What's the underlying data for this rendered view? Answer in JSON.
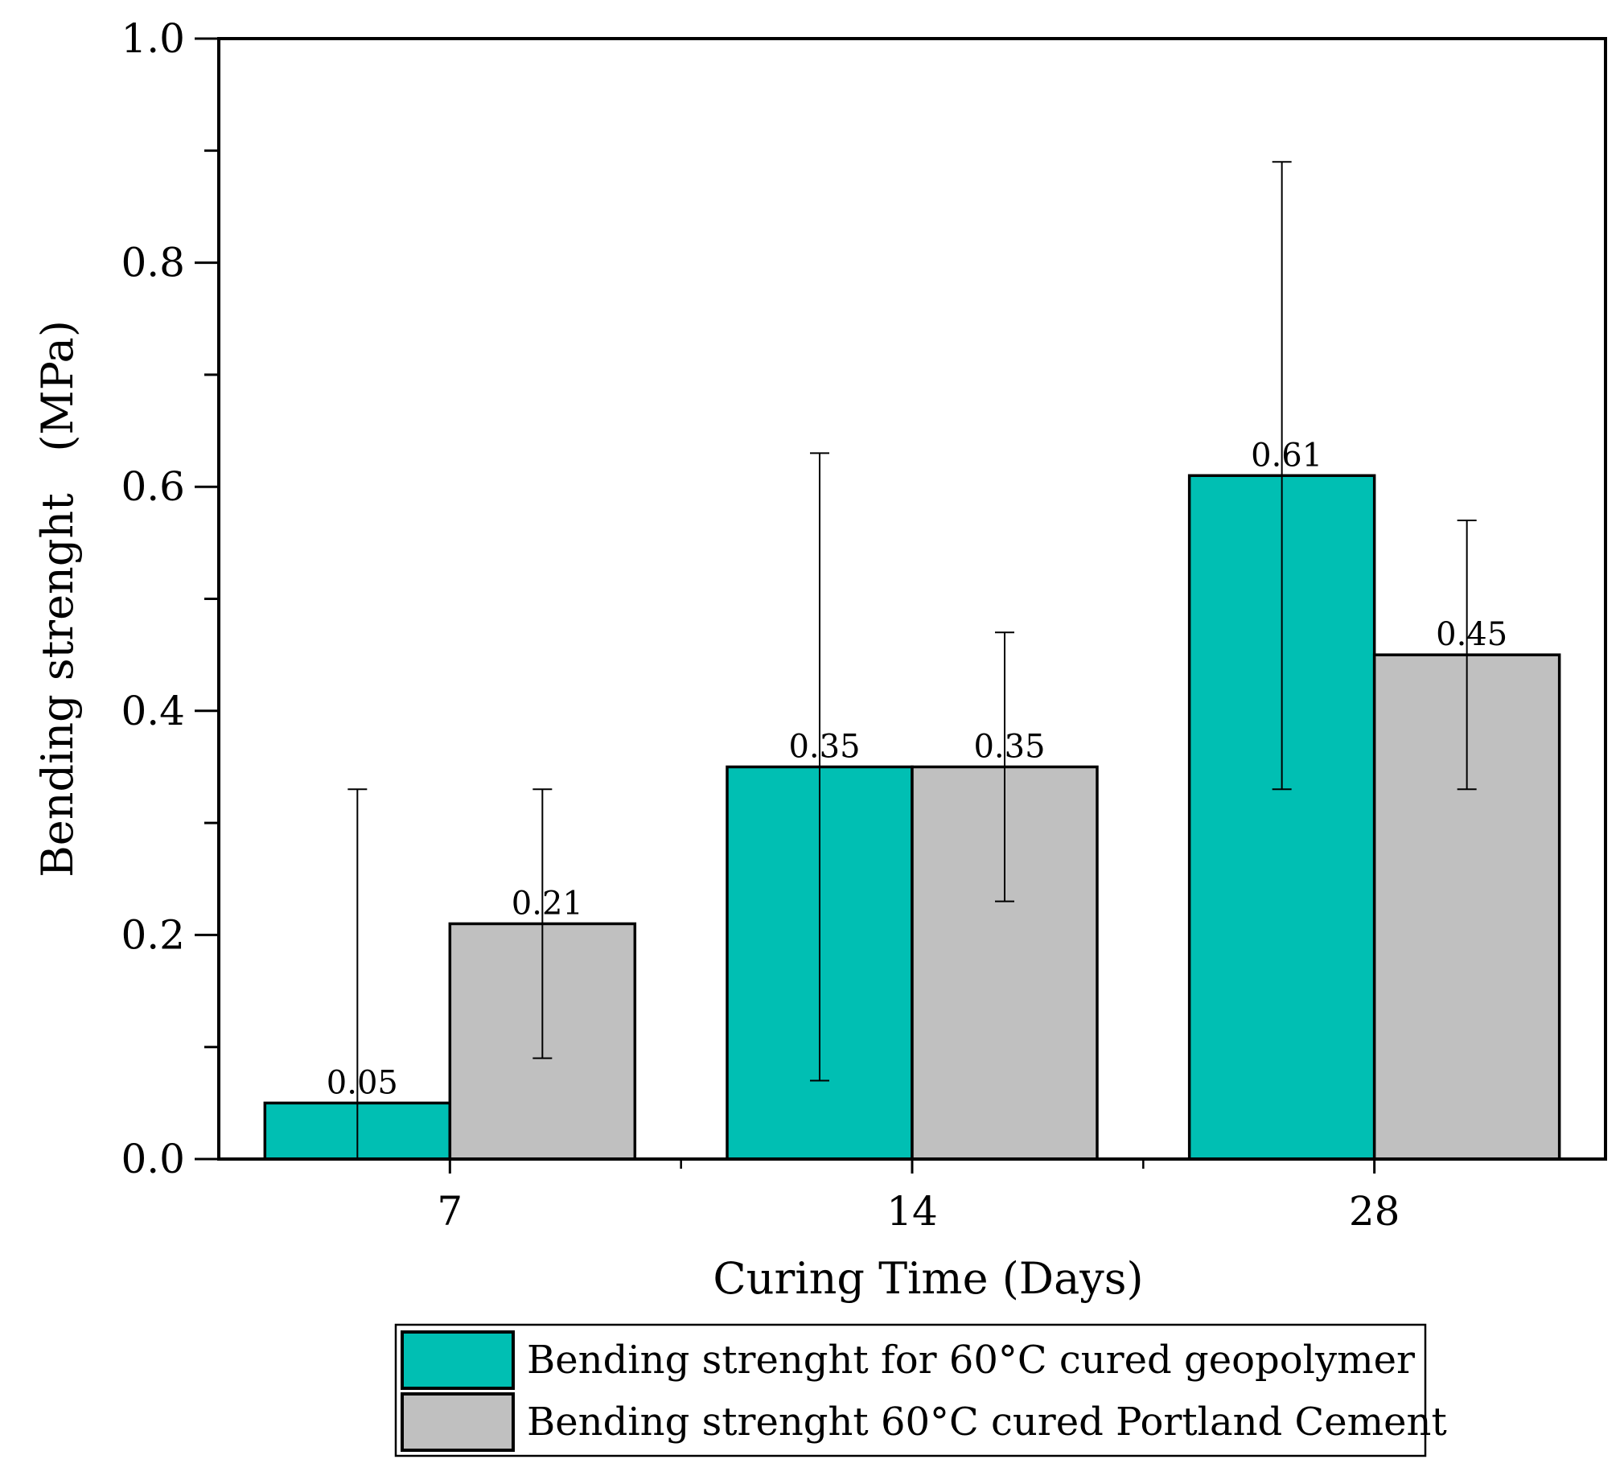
{
  "chart_data": {
    "type": "bar",
    "title": "",
    "xlabel": "Curing Time (Days)",
    "ylabel": "Bending strenght   (MPa)",
    "categories": [
      "7",
      "14",
      "28"
    ],
    "ylim": [
      0.0,
      1.0
    ],
    "yticks": [
      "0.0",
      "0.2",
      "0.4",
      "0.6",
      "0.8",
      "1.0"
    ],
    "yminor_step": 0.1,
    "grid": false,
    "legend_position": "bottom-center",
    "series": [
      {
        "name": "Bending strenght for 60°C cured geopolymer",
        "color": "#00bfb3",
        "values": [
          0.05,
          0.35,
          0.61
        ],
        "labels": [
          "0.05",
          "0.35",
          "0.61"
        ],
        "error_low": [
          0.0,
          0.07,
          0.33
        ],
        "error_high": [
          0.33,
          0.63,
          0.89
        ]
      },
      {
        "name": "Bending strenght 60°C cured Portland Cement",
        "color": "#c0c0c0",
        "values": [
          0.21,
          0.35,
          0.45
        ],
        "labels": [
          "0.21",
          "0.35",
          "0.45"
        ],
        "error_low": [
          0.09,
          0.23,
          0.33
        ],
        "error_high": [
          0.33,
          0.47,
          0.57
        ]
      }
    ]
  }
}
